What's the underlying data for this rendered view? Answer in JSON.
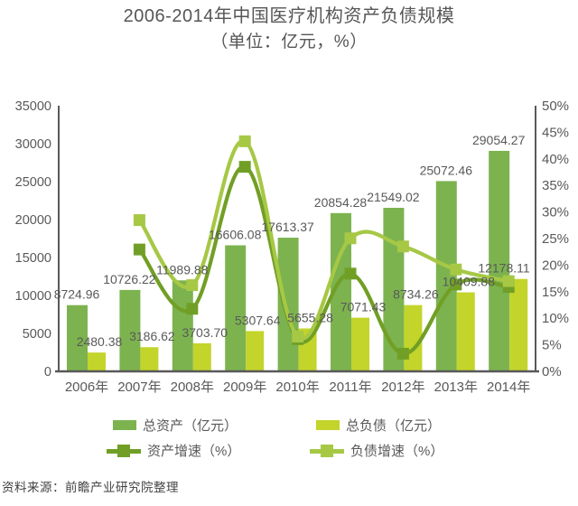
{
  "header": {
    "title": "2006-2014年中国医疗机构资产负债规模",
    "subtitle": "（单位：亿元，%）"
  },
  "source_note": "资料来源：前瞻产业研究院整理",
  "colors": {
    "assets_bar": "#7cb34f",
    "liabilities_bar": "#c3d42b",
    "asset_growth_line": "#719f25",
    "liability_growth_line": "#a6c845",
    "axis": "#595959",
    "text": "#595959"
  },
  "legend": {
    "total_assets": "总资产（亿元）",
    "total_liabilities": "总负债（亿元）",
    "asset_growth": "资产增速（%）",
    "liability_growth": "负债增速（%）"
  },
  "chart_data": {
    "type": "bar",
    "subtype": "dual-axis combo: grouped bars + smoothed lines with square markers",
    "categories": [
      "2006年",
      "2007年",
      "2008年",
      "2009年",
      "2010年",
      "2011年",
      "2012年",
      "2013年",
      "2014年"
    ],
    "bar_series": [
      {
        "name": "总资产（亿元）",
        "axis": "left",
        "color_key": "assets_bar",
        "values": [
          8724.96,
          10726.22,
          11989.88,
          16606.08,
          17613.37,
          20854.28,
          21549.02,
          25072.46,
          29054.27
        ]
      },
      {
        "name": "总负债（亿元）",
        "axis": "left",
        "color_key": "liabilities_bar",
        "values": [
          2480.38,
          3186.62,
          3703.7,
          5307.64,
          5655.28,
          7071.43,
          8734.26,
          10409.88,
          12178.11
        ]
      }
    ],
    "line_series": [
      {
        "name": "资产增速（%）",
        "axis": "right",
        "color_key": "asset_growth_line",
        "values": [
          null,
          22.94,
          11.78,
          38.5,
          6.07,
          18.4,
          3.33,
          16.35,
          15.88
        ]
      },
      {
        "name": "负债增速（%）",
        "axis": "right",
        "color_key": "liability_growth_line",
        "values": [
          null,
          28.47,
          16.23,
          43.31,
          6.55,
          25.04,
          23.51,
          19.18,
          16.99
        ]
      }
    ],
    "left_axis": {
      "min": 0,
      "max": 35000,
      "step": 5000,
      "ticks": [
        "0",
        "5000",
        "10000",
        "15000",
        "20000",
        "25000",
        "30000",
        "35000"
      ]
    },
    "right_axis": {
      "min": 0,
      "max": 50,
      "step": 5,
      "suffix": "%",
      "ticks": [
        "0%",
        "5%",
        "10%",
        "15%",
        "20%",
        "25%",
        "30%",
        "35%",
        "40%",
        "45%",
        "50%"
      ]
    },
    "data_labels": "bar values labeled with 2 decimals above bars",
    "grid": false,
    "legend_position": "bottom"
  }
}
